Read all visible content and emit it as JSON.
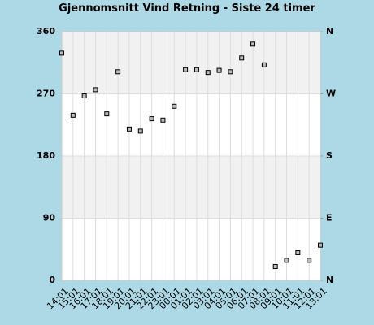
{
  "chart_data": {
    "type": "scatter",
    "title": "Gjennomsnitt Vind Retning - Siste 24 timer",
    "categories": [
      "14:01",
      "15:01",
      "16:01",
      "17:01",
      "18:01",
      "19:01",
      "20:01",
      "21:01",
      "22:01",
      "23:01",
      "00:01",
      "01:01",
      "02:01",
      "03:01",
      "04:01",
      "05:01",
      "06:01",
      "07:01",
      "08:01",
      "09:01",
      "10:01",
      "11:01",
      "12:01",
      "13:01"
    ],
    "series": [
      {
        "name": "Vind Retning",
        "color": "#555555",
        "values": [
          329,
          239,
          267,
          276,
          241,
          302,
          219,
          216,
          234,
          232,
          252,
          305,
          305,
          301,
          304,
          302,
          322,
          342,
          312,
          20,
          29,
          40,
          29,
          51
        ]
      }
    ],
    "ylim": [
      0,
      360
    ],
    "yticks": [
      0,
      90,
      180,
      270,
      360
    ],
    "y2lim": [
      0,
      360
    ],
    "y2ticks": [
      {
        "value": 0,
        "label": "N"
      },
      {
        "value": 90,
        "label": "E"
      },
      {
        "value": 180,
        "label": "S"
      },
      {
        "value": 270,
        "label": "W"
      },
      {
        "value": 360,
        "label": "N"
      }
    ],
    "grid": true
  }
}
